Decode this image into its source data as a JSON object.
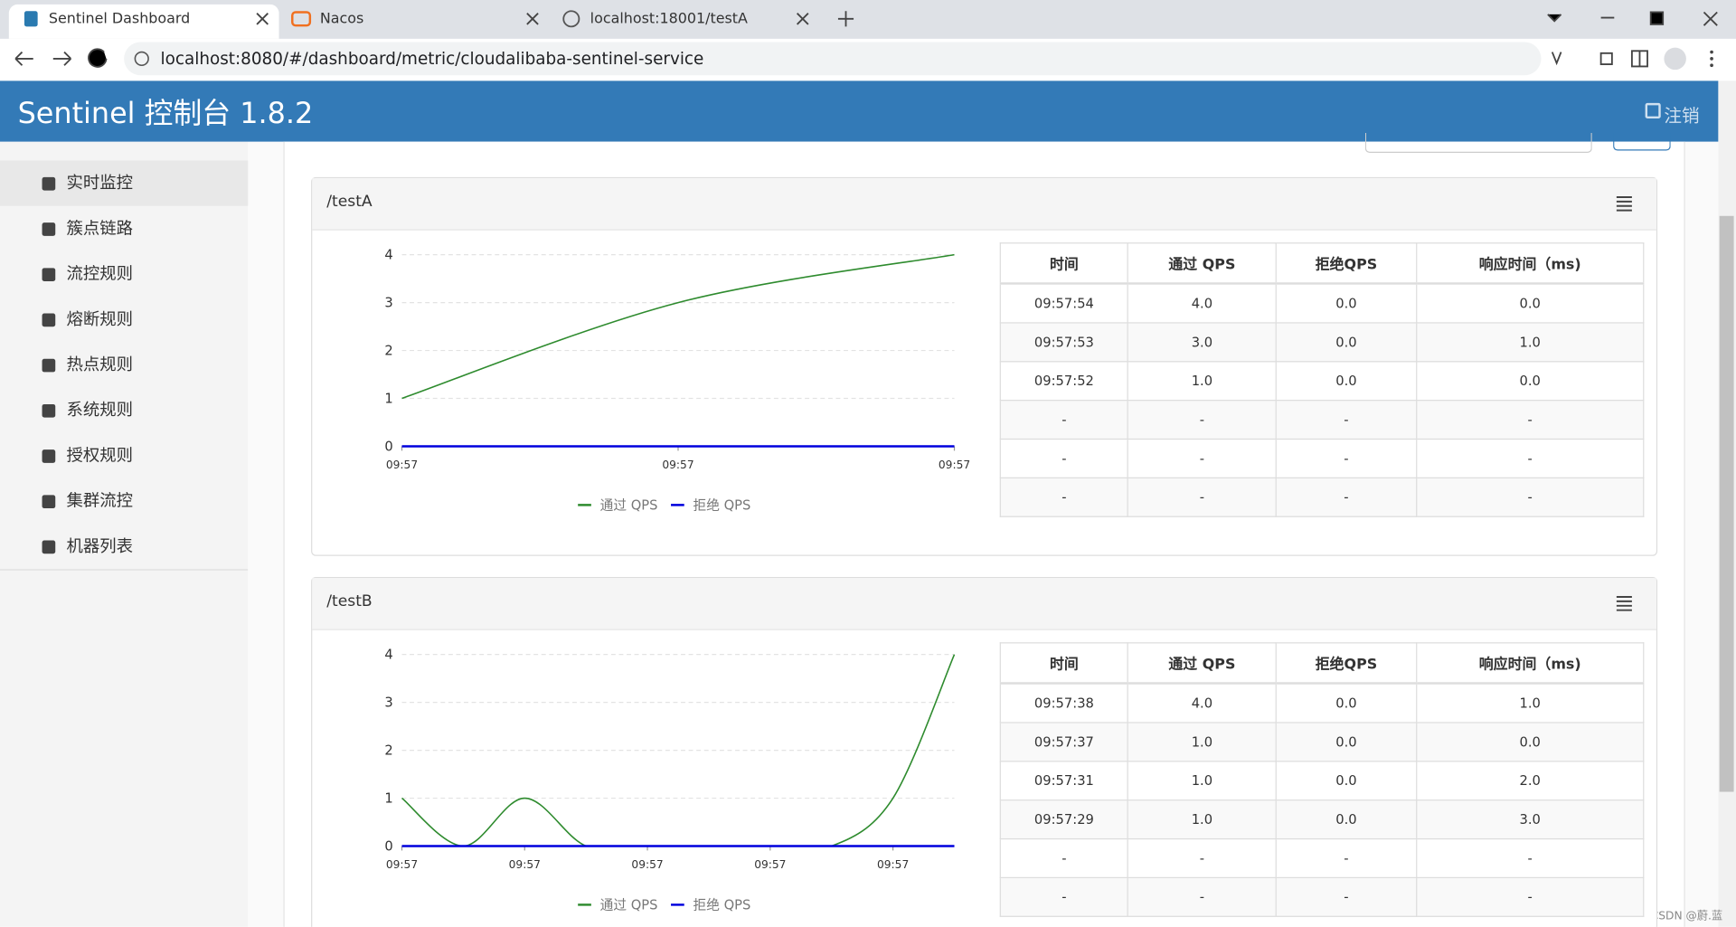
{
  "browser": {
    "tabs": [
      "Sentinel Dashboard",
      "Nacos",
      "localhost:18001/testA"
    ],
    "url": "localhost:8080/#/dashboard/metric/cloudalibaba-sentinel-service"
  },
  "header": {
    "title": "Sentinel 控制台 1.8.2",
    "logout": "注销"
  },
  "sidebar": {
    "items": [
      "实时监控",
      "簇点链路",
      "流控规则",
      "熔断规则",
      "热点规则",
      "系统规则",
      "授权规则",
      "集群流控",
      "机器列表"
    ]
  },
  "panels": [
    {
      "title": "/testA",
      "chart": {
        "type": "line",
        "categories": [
          "09:57",
          "09:57",
          "09:57"
        ],
        "series": [
          {
            "name": "通过 QPS",
            "color": "#2e8b2e",
            "values": [
              1,
              3,
              4
            ]
          },
          {
            "name": "拒绝 QPS",
            "color": "#0000dd",
            "values": [
              0,
              0,
              0
            ]
          }
        ],
        "ylim": [
          0,
          4
        ],
        "yticks": [
          0,
          1,
          2,
          3,
          4
        ],
        "grid": true
      },
      "table": {
        "columns": [
          "时间",
          "通过 QPS",
          "拒绝QPS",
          "响应时间（ms)"
        ],
        "rows": [
          [
            "09:57:54",
            "4.0",
            "0.0",
            "0.0"
          ],
          [
            "09:57:53",
            "3.0",
            "0.0",
            "1.0"
          ],
          [
            "09:57:52",
            "1.0",
            "0.0",
            "0.0"
          ],
          [
            "-",
            "-",
            "-",
            "-"
          ],
          [
            "-",
            "-",
            "-",
            "-"
          ],
          [
            "-",
            "-",
            "-",
            "-"
          ]
        ]
      }
    },
    {
      "title": "/testB",
      "chart": {
        "type": "line",
        "categories": [
          "09:57",
          null,
          "09:57",
          null,
          "09:57",
          null,
          "09:57",
          null,
          "09:57",
          null
        ],
        "series": [
          {
            "name": "通过 QPS",
            "color": "#2e8b2e",
            "values": [
              1,
              0,
              1,
              0,
              0,
              0,
              0,
              0,
              1,
              4
            ]
          },
          {
            "name": "拒绝 QPS",
            "color": "#0000dd",
            "values": [
              0,
              0,
              0,
              0,
              0,
              0,
              0,
              0,
              0,
              0
            ]
          }
        ],
        "ylim": [
          0,
          4
        ],
        "yticks": [
          0,
          1,
          2,
          3,
          4
        ],
        "grid": true
      },
      "table": {
        "columns": [
          "时间",
          "通过 QPS",
          "拒绝QPS",
          "响应时间（ms)"
        ],
        "rows": [
          [
            "09:57:38",
            "4.0",
            "0.0",
            "1.0"
          ],
          [
            "09:57:37",
            "1.0",
            "0.0",
            "0.0"
          ],
          [
            "09:57:31",
            "1.0",
            "0.0",
            "2.0"
          ],
          [
            "09:57:29",
            "1.0",
            "0.0",
            "3.0"
          ],
          [
            "-",
            "-",
            "-",
            "-"
          ],
          [
            "-",
            "-",
            "-",
            "-"
          ]
        ]
      }
    }
  ],
  "watermark": "CSDN @蔚.蓝"
}
